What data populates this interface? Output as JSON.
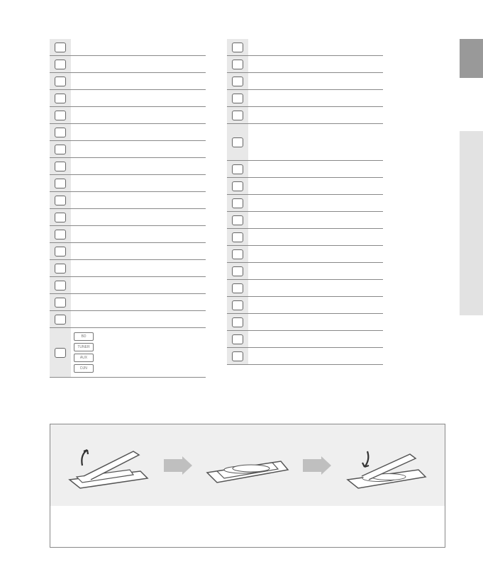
{
  "left_table": [
    {
      "label": ""
    },
    {
      "label": ""
    },
    {
      "label": ""
    },
    {
      "label": ""
    },
    {
      "label": ""
    },
    {
      "label": ""
    },
    {
      "label": ""
    },
    {
      "label": ""
    },
    {
      "label": ""
    },
    {
      "label": ""
    },
    {
      "label": ""
    },
    {
      "label": ""
    },
    {
      "label": ""
    },
    {
      "label": ""
    },
    {
      "label": ""
    },
    {
      "label": ""
    },
    {
      "label": ""
    }
  ],
  "left_multi": {
    "items": [
      "BD",
      "TUNER",
      "AUX",
      "DJN"
    ]
  },
  "right_table": [
    {
      "label": ""
    },
    {
      "label": ""
    },
    {
      "label": ""
    },
    {
      "label": ""
    },
    {
      "label": ""
    },
    {
      "label": "",
      "tall": true
    },
    {
      "label": ""
    },
    {
      "label": ""
    },
    {
      "label": ""
    },
    {
      "label": ""
    },
    {
      "label": ""
    },
    {
      "label": ""
    },
    {
      "label": ""
    },
    {
      "label": ""
    },
    {
      "label": ""
    },
    {
      "label": ""
    },
    {
      "label": ""
    },
    {
      "label": ""
    }
  ],
  "battery_note": "",
  "colors": {
    "cell_bg": "#e8e8e8",
    "border": "#888",
    "side_tab": "#999",
    "side_strip": "#e2e2e2",
    "arrow": "#bfbfbf",
    "illus_bg": "#efefef"
  }
}
